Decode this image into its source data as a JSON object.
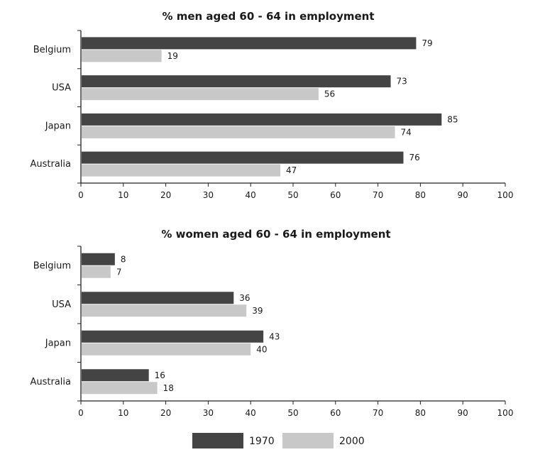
{
  "colors": {
    "1970": "#444444",
    "2000": "#c8c8c8"
  },
  "legend": [
    {
      "label": "1970",
      "color": "#444444"
    },
    {
      "label": "2000",
      "color": "#c8c8c8"
    }
  ],
  "chart_data": [
    {
      "type": "bar",
      "orientation": "horizontal",
      "title": "% men aged 60 - 64 in employment",
      "categories": [
        "Belgium",
        "USA",
        "Japan",
        "Australia"
      ],
      "series": [
        {
          "name": "1970",
          "values": [
            79,
            73,
            85,
            76
          ]
        },
        {
          "name": "2000",
          "values": [
            19,
            56,
            74,
            47
          ]
        }
      ],
      "xlim": [
        0,
        100
      ],
      "xticks": [
        0,
        10,
        20,
        30,
        40,
        50,
        60,
        70,
        80,
        90,
        100
      ],
      "grid": false,
      "legend_position": "bottom"
    },
    {
      "type": "bar",
      "orientation": "horizontal",
      "title": "% women aged 60 - 64 in employment",
      "categories": [
        "Belgium",
        "USA",
        "Japan",
        "Australia"
      ],
      "series": [
        {
          "name": "1970",
          "values": [
            8,
            36,
            43,
            16
          ]
        },
        {
          "name": "2000",
          "values": [
            7,
            39,
            40,
            18
          ]
        }
      ],
      "xlim": [
        0,
        100
      ],
      "xticks": [
        0,
        10,
        20,
        30,
        40,
        50,
        60,
        70,
        80,
        90,
        100
      ],
      "grid": false,
      "legend_position": "bottom"
    }
  ]
}
